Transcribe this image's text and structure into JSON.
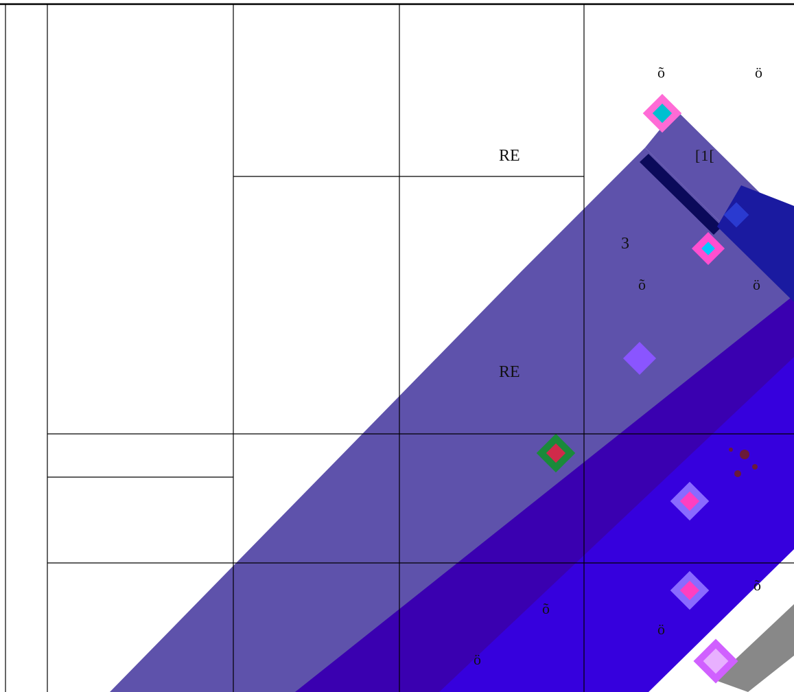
{
  "labels": {
    "re_top": "RE",
    "re_mid": "RE",
    "bracket": "[1[",
    "three": "3"
  },
  "glyphs": {
    "o_tilde": "õ",
    "o_umlaut": "ö"
  },
  "colors": {
    "band_light": "#5e52ab",
    "band_dark": "#3a00b0",
    "band_bright": "#3600dd",
    "band_navy": "#1a0a8a",
    "gray_strip": "#888888",
    "grid_line": "#000000",
    "background": "#ffffff"
  }
}
